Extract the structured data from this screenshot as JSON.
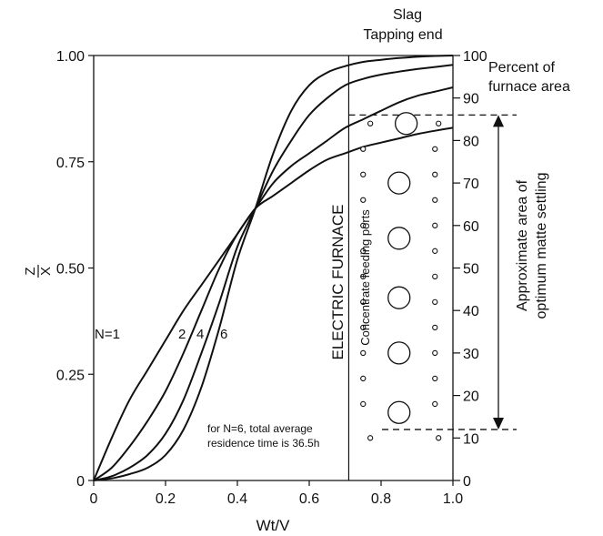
{
  "chart_data": {
    "type": "line",
    "title": "",
    "xlabel": "Wt/V",
    "ylabel_numerator": "Z",
    "ylabel_denominator": "X",
    "xlim": [
      0,
      1.0
    ],
    "ylim": [
      0,
      1.0
    ],
    "x_ticks": [
      "0",
      "0.2",
      "0.4",
      "0.6",
      "0.8",
      "1.0"
    ],
    "y_ticks": [
      "0",
      "0.25",
      "0.50",
      "0.75",
      "1.00"
    ],
    "right_axis": {
      "range": [
        0,
        100
      ],
      "ticks": [
        "0",
        "10",
        "20",
        "30",
        "40",
        "50",
        "60",
        "70",
        "80",
        "90",
        "100"
      ],
      "label_line1": "Percent of",
      "label_line2": "furnace area"
    },
    "top_label_line1": "Slag",
    "top_label_line2": "Tapping end",
    "series": [
      {
        "name": "N=1",
        "x": [
          0,
          0.05,
          0.1,
          0.15,
          0.2,
          0.25,
          0.3,
          0.35,
          0.4,
          0.45,
          0.5,
          0.55,
          0.6,
          0.65,
          0.7,
          0.75,
          0.8,
          0.85,
          0.9,
          0.95,
          1.0
        ],
        "values": [
          0,
          0.1,
          0.19,
          0.26,
          0.33,
          0.4,
          0.46,
          0.52,
          0.58,
          0.64,
          0.67,
          0.7,
          0.73,
          0.755,
          0.77,
          0.785,
          0.795,
          0.805,
          0.815,
          0.823,
          0.83
        ]
      },
      {
        "name": "2",
        "x": [
          0,
          0.05,
          0.1,
          0.15,
          0.2,
          0.25,
          0.3,
          0.35,
          0.4,
          0.45,
          0.5,
          0.55,
          0.6,
          0.65,
          0.7,
          0.75,
          0.8,
          0.85,
          0.9,
          0.95,
          1.0
        ],
        "values": [
          0,
          0.03,
          0.08,
          0.14,
          0.21,
          0.3,
          0.4,
          0.5,
          0.58,
          0.64,
          0.7,
          0.74,
          0.77,
          0.8,
          0.83,
          0.85,
          0.87,
          0.89,
          0.905,
          0.915,
          0.925
        ]
      },
      {
        "name": "4",
        "x": [
          0,
          0.05,
          0.1,
          0.15,
          0.2,
          0.25,
          0.3,
          0.35,
          0.4,
          0.45,
          0.5,
          0.55,
          0.6,
          0.65,
          0.7,
          0.75,
          0.8,
          0.85,
          0.9,
          0.95,
          1.0
        ],
        "values": [
          0,
          0.01,
          0.03,
          0.06,
          0.11,
          0.19,
          0.3,
          0.42,
          0.55,
          0.64,
          0.73,
          0.8,
          0.86,
          0.9,
          0.93,
          0.945,
          0.955,
          0.962,
          0.968,
          0.973,
          0.978
        ]
      },
      {
        "name": "6",
        "x": [
          0,
          0.05,
          0.1,
          0.15,
          0.2,
          0.25,
          0.3,
          0.35,
          0.4,
          0.45,
          0.5,
          0.55,
          0.6,
          0.65,
          0.7,
          0.75,
          0.8,
          0.85,
          0.9,
          0.95,
          1.0
        ],
        "values": [
          0,
          0.005,
          0.015,
          0.03,
          0.06,
          0.12,
          0.22,
          0.36,
          0.52,
          0.64,
          0.77,
          0.87,
          0.93,
          0.96,
          0.975,
          0.985,
          0.99,
          0.994,
          0.997,
          0.999,
          1.0
        ]
      }
    ],
    "curve_labels": [
      "N=1",
      "2",
      "4",
      "6"
    ],
    "vertical_line_x": 0.71,
    "furnace_label": "ELECTRIC FURNACE",
    "ports_label": "Concentrate feeding ports",
    "optimum_label_line1": "Approximate area of",
    "optimum_label_line2": "optimum matte settling",
    "optimum_range_percent": [
      12,
      86
    ],
    "note_line1": "for N=6, total average",
    "note_line2": "residence time is 36.5h",
    "large_ports": [
      {
        "x": 0.87,
        "percent": 84
      },
      {
        "x": 0.85,
        "percent": 70
      },
      {
        "x": 0.85,
        "percent": 57
      },
      {
        "x": 0.85,
        "percent": 43
      },
      {
        "x": 0.85,
        "percent": 30
      },
      {
        "x": 0.85,
        "percent": 16
      }
    ],
    "small_ports": [
      {
        "x": 0.77,
        "percent": 84
      },
      {
        "x": 0.96,
        "percent": 84
      },
      {
        "x": 0.75,
        "percent": 78
      },
      {
        "x": 0.95,
        "percent": 78
      },
      {
        "x": 0.75,
        "percent": 72
      },
      {
        "x": 0.95,
        "percent": 72
      },
      {
        "x": 0.75,
        "percent": 66
      },
      {
        "x": 0.95,
        "percent": 66
      },
      {
        "x": 0.75,
        "percent": 60
      },
      {
        "x": 0.95,
        "percent": 60
      },
      {
        "x": 0.75,
        "percent": 54
      },
      {
        "x": 0.95,
        "percent": 54
      },
      {
        "x": 0.75,
        "percent": 48
      },
      {
        "x": 0.95,
        "percent": 48
      },
      {
        "x": 0.75,
        "percent": 42
      },
      {
        "x": 0.95,
        "percent": 42
      },
      {
        "x": 0.75,
        "percent": 36
      },
      {
        "x": 0.95,
        "percent": 36
      },
      {
        "x": 0.75,
        "percent": 30
      },
      {
        "x": 0.95,
        "percent": 30
      },
      {
        "x": 0.75,
        "percent": 24
      },
      {
        "x": 0.95,
        "percent": 24
      },
      {
        "x": 0.75,
        "percent": 18
      },
      {
        "x": 0.95,
        "percent": 18
      },
      {
        "x": 0.77,
        "percent": 10
      },
      {
        "x": 0.96,
        "percent": 10
      }
    ]
  }
}
